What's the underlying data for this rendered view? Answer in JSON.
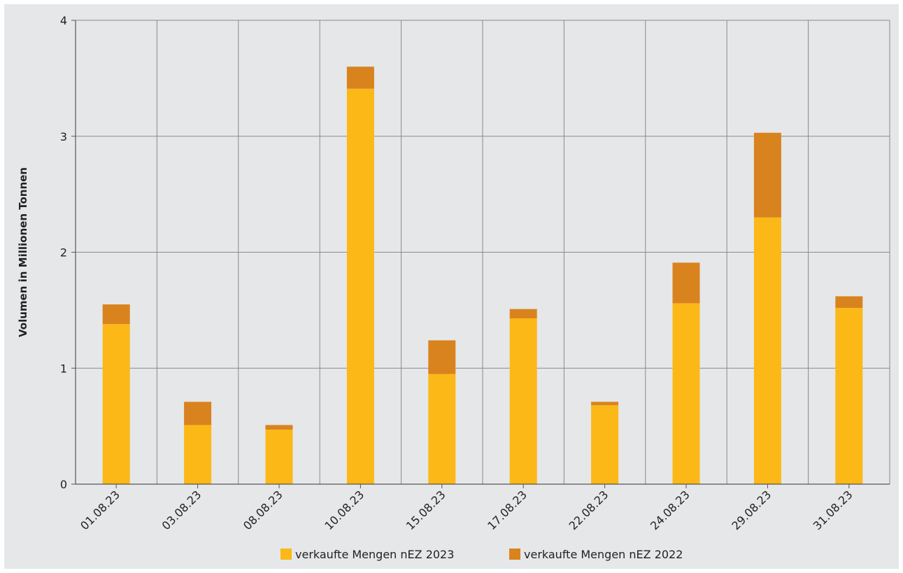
{
  "chart_data": {
    "type": "bar",
    "stacked": true,
    "categories": [
      "01.08.23",
      "03.08.23",
      "08.08.23",
      "10.08.23",
      "15.08.23",
      "17.08.23",
      "22.08.23",
      "24.08.23",
      "29.08.23",
      "31.08.23"
    ],
    "series": [
      {
        "name": "verkaufte Mengen nEZ 2023",
        "color": "#fbb817",
        "values": [
          1.38,
          0.51,
          0.47,
          3.41,
          0.95,
          1.43,
          0.68,
          1.56,
          2.3,
          1.52
        ]
      },
      {
        "name": "verkaufte Mengen nEZ 2022",
        "color": "#d9831e",
        "values": [
          0.17,
          0.2,
          0.04,
          0.19,
          0.29,
          0.08,
          0.03,
          0.35,
          0.73,
          0.1
        ]
      }
    ],
    "xlabel": "",
    "ylabel": "Volumen in Millionen Tonnen",
    "ylim": [
      0,
      4
    ],
    "yticks": [
      0,
      1,
      2,
      3,
      4
    ],
    "grid": true,
    "legend_position": "bottom",
    "background": "#e6e7e8"
  }
}
